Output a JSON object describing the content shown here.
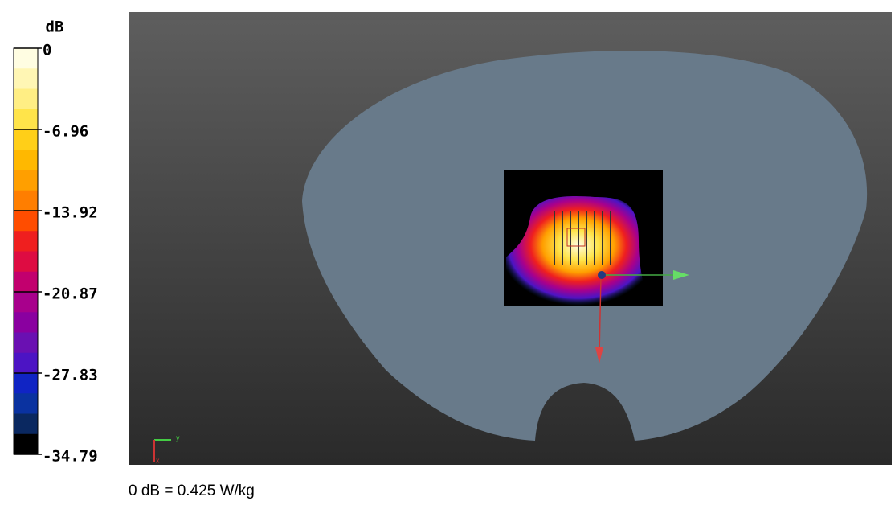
{
  "colorbar": {
    "unit": "dB",
    "ticks": [
      0,
      -6.96,
      -13.92,
      -20.87,
      -27.83,
      -34.79
    ],
    "colors": [
      "#fffde2",
      "#fff6b4",
      "#ffee84",
      "#ffe44a",
      "#ffcf18",
      "#ffb800",
      "#ff9f00",
      "#ff7e00",
      "#ff4d00",
      "#ef1f1f",
      "#de0c42",
      "#c2006e",
      "#a8008c",
      "#8a00a0",
      "#6a10b2",
      "#4c14c4",
      "#1024c4",
      "#0a32a0",
      "#0a2860",
      "#000000"
    ]
  },
  "axes": {
    "y": "y",
    "x": "x"
  },
  "caption": "0 dB = 0.425 W/kg"
}
